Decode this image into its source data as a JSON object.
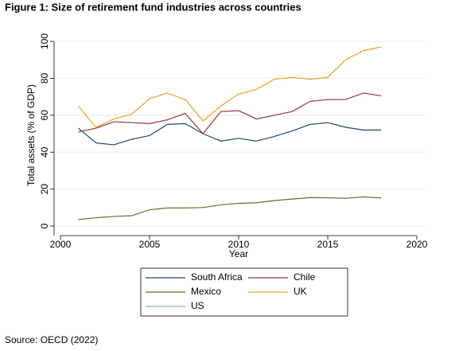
{
  "chart_data": {
    "type": "line",
    "title": "Figure 1: Size of retirement fund industries across countries",
    "source": "Source: OECD (2022)",
    "x_label": "Year",
    "y_label": "Total assets (% of GDP)",
    "x": [
      2001,
      2002,
      2003,
      2004,
      2005,
      2006,
      2007,
      2008,
      2009,
      2010,
      2011,
      2012,
      2013,
      2014,
      2015,
      2016,
      2017,
      2018
    ],
    "series": [
      {
        "name": "South Africa",
        "color": "#1a476f",
        "values": [
          53,
          45,
          44,
          47,
          49,
          55,
          55.5,
          50,
          46,
          47.5,
          46,
          48.5,
          51.5,
          55,
          56,
          53.5,
          52,
          52
        ]
      },
      {
        "name": "Chile",
        "color": "#90353b",
        "values": [
          51,
          53,
          56.5,
          56,
          55.5,
          57.5,
          61,
          50,
          62,
          62.5,
          58,
          60,
          62,
          67.5,
          68.5,
          68.5,
          72,
          70.5
        ]
      },
      {
        "name": "Mexico",
        "color": "#55752f",
        "values": [
          3.5,
          4.5,
          5.2,
          5.6,
          8.8,
          9.8,
          9.8,
          10,
          11.5,
          12.3,
          12.6,
          13.8,
          14.6,
          15.4,
          15.3,
          15,
          15.8,
          15.2
        ]
      },
      {
        "name": "UK",
        "color": "#e69f2e",
        "values": [
          65,
          53.5,
          58,
          60.5,
          69,
          72,
          68.5,
          57,
          65,
          71.5,
          74,
          79.5,
          80.5,
          79.5,
          80.5,
          90,
          95,
          97
        ]
      },
      {
        "name": "US",
        "color": "#8fb59c",
        "values": [
          null,
          null,
          null,
          null,
          null,
          null,
          null,
          null,
          null,
          null,
          null,
          null,
          null,
          null,
          null,
          null,
          null,
          null
        ]
      }
    ],
    "xlim": [
      2000,
      2020
    ],
    "xticks": [
      2000,
      2005,
      2010,
      2015,
      2020
    ],
    "ylim": [
      0,
      100
    ],
    "yticks": [
      0,
      20,
      40,
      60,
      80,
      100
    ],
    "grid": true
  }
}
